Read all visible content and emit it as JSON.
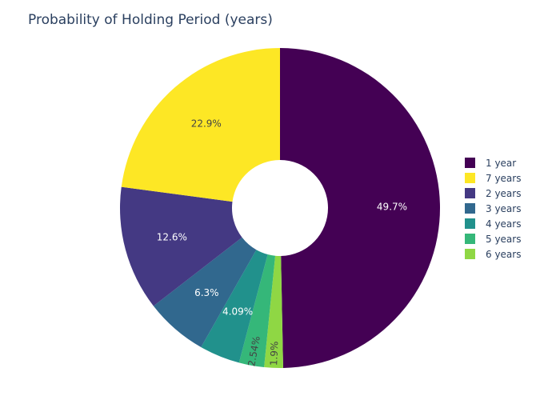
{
  "chart_data": {
    "type": "pie",
    "title": "Probability of Holding Period (years)",
    "hole": 0.3,
    "slices": [
      {
        "label": "1 year",
        "value": 49.7,
        "text": "49.7%",
        "color": "#440154",
        "text_color": "#ffffff"
      },
      {
        "label": "6 years",
        "value": 1.9,
        "text": "1.9%",
        "color": "#8fd744",
        "text_color": "#444444"
      },
      {
        "label": "5 years",
        "value": 2.54,
        "text": "2.54%",
        "color": "#35b779",
        "text_color": "#444444"
      },
      {
        "label": "4 years",
        "value": 4.09,
        "text": "4.09%",
        "color": "#21918c",
        "text_color": "#ffffff"
      },
      {
        "label": "3 years",
        "value": 6.3,
        "text": "6.3%",
        "color": "#31688e",
        "text_color": "#ffffff"
      },
      {
        "label": "2 years",
        "value": 12.6,
        "text": "12.6%",
        "color": "#443983",
        "text_color": "#ffffff"
      },
      {
        "label": "7 years",
        "value": 22.9,
        "text": "22.9%",
        "color": "#fde725",
        "text_color": "#444444"
      }
    ],
    "legend_order": [
      "1 year",
      "7 years",
      "2 years",
      "3 years",
      "4 years",
      "5 years",
      "6 years"
    ],
    "legend_placement": "right"
  }
}
